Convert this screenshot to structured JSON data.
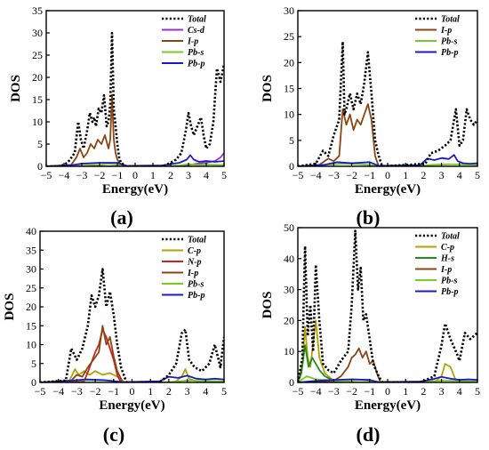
{
  "chart_data": [
    {
      "type": "line",
      "panel_label": "(a)",
      "xlabel": "Energy(eV)",
      "ylabel": "DOS",
      "xlim": [
        -5,
        5
      ],
      "ylim": [
        0,
        35
      ],
      "xticks": [
        -5,
        -4,
        -3,
        -2,
        -1,
        0,
        1,
        2,
        3,
        4,
        5
      ],
      "yticks": [
        0,
        5,
        10,
        15,
        20,
        25,
        30,
        35
      ],
      "xtick_labels": [
        "−5",
        "−4",
        "−3",
        "−2",
        "−1",
        "0",
        "1",
        "2",
        "3",
        "4",
        "5"
      ],
      "ytick_labels": [
        "0",
        "5",
        "10",
        "15",
        "20",
        "25",
        "30",
        "35"
      ],
      "legend": "top-right",
      "series": [
        {
          "name": "Total",
          "color": "#000000",
          "style": "dotted",
          "x": [
            -5,
            -4.2,
            -3.8,
            -3.4,
            -3.2,
            -3.05,
            -2.9,
            -2.7,
            -2.55,
            -2.4,
            -2.3,
            -2.2,
            -2.05,
            -1.9,
            -1.75,
            -1.6,
            -1.5,
            -1.4,
            -1.3,
            -1.2,
            -1.1,
            -1.0,
            -0.9,
            -0.8,
            -0.5,
            1.6,
            2.3,
            2.6,
            2.85,
            3.0,
            3.15,
            3.3,
            3.5,
            3.7,
            3.85,
            4.0,
            4.2,
            4.4,
            4.6,
            4.8,
            5.0
          ],
          "y": [
            0,
            0,
            0.8,
            3,
            10,
            6,
            4,
            8,
            12,
            10,
            11,
            9,
            13,
            12,
            16,
            9,
            10,
            14,
            30,
            13,
            9,
            5,
            2,
            0.8,
            0,
            0,
            1.5,
            3,
            8,
            12,
            9,
            7,
            9,
            11,
            7,
            4,
            5,
            10,
            22,
            19,
            23
          ]
        },
        {
          "name": "Cs-d",
          "color": "#9933cc",
          "style": "solid",
          "x": [
            -5,
            2.5,
            3.0,
            3.5,
            4.0,
            4.5,
            4.8,
            5.0
          ],
          "y": [
            0,
            0,
            0.3,
            0.6,
            0.8,
            1.2,
            2.0,
            3.0
          ]
        },
        {
          "name": "I-p",
          "color": "#8b4513",
          "style": "solid",
          "x": [
            -5,
            -3.6,
            -3.3,
            -3.1,
            -2.9,
            -2.7,
            -2.5,
            -2.3,
            -2.1,
            -1.9,
            -1.7,
            -1.5,
            -1.4,
            -1.3,
            -1.2,
            -1.1,
            -1.0,
            -0.8,
            -0.5
          ],
          "y": [
            0,
            0.3,
            2,
            4,
            2,
            3,
            5,
            4,
            6,
            5,
            7,
            4,
            6,
            16,
            6,
            3,
            1.5,
            0.3,
            0
          ]
        },
        {
          "name": "Pb-s",
          "color": "#77cc22",
          "style": "solid",
          "x": [
            -5,
            -3.5,
            -3.0,
            -2.0,
            -1.5,
            -0.5,
            0.5,
            1.5,
            2.5,
            3.0,
            3.5,
            4.0,
            5.0
          ],
          "y": [
            0,
            0.2,
            0.5,
            0.3,
            0.6,
            0.1,
            0,
            0,
            0.2,
            0.5,
            0.3,
            0.4,
            0.3
          ]
        },
        {
          "name": "Pb-p",
          "color": "#1a1acc",
          "style": "solid",
          "x": [
            -5,
            -3.5,
            -3.0,
            -2.0,
            -1.0,
            -0.5,
            1.5,
            2.5,
            2.9,
            3.1,
            3.3,
            3.6,
            4.0,
            4.5,
            5.0
          ],
          "y": [
            0,
            0.3,
            0.6,
            0.8,
            0.8,
            0.1,
            0.2,
            0.8,
            1.5,
            2.5,
            1.5,
            1.0,
            1.2,
            1.0,
            1.2
          ]
        }
      ]
    },
    {
      "type": "line",
      "panel_label": "(b)",
      "xlabel": "Energy(eV)",
      "ylabel": "DOS",
      "xlim": [
        -5,
        5
      ],
      "ylim": [
        0,
        30
      ],
      "xticks": [
        -5,
        -4,
        -3,
        -2,
        -1,
        0,
        1,
        2,
        3,
        4,
        5
      ],
      "yticks": [
        0,
        5,
        10,
        15,
        20,
        25,
        30
      ],
      "xtick_labels": [
        "−5",
        "−4",
        "−3",
        "−2",
        "−1",
        "0",
        "1",
        "2",
        "3",
        "4",
        "5"
      ],
      "ytick_labels": [
        "0",
        "5",
        "10",
        "15",
        "20",
        "25",
        "30"
      ],
      "legend": "top-right",
      "series": [
        {
          "name": "Total",
          "color": "#000000",
          "style": "dotted",
          "x": [
            -5,
            -4.0,
            -3.6,
            -3.3,
            -3.0,
            -2.7,
            -2.5,
            -2.4,
            -2.3,
            -2.1,
            -1.9,
            -1.7,
            -1.5,
            -1.3,
            -1.1,
            -0.9,
            -0.7,
            -0.5,
            -0.3,
            2.1,
            2.4,
            2.8,
            3.2,
            3.5,
            3.8,
            4.0,
            4.2,
            4.4,
            4.6,
            4.8,
            5.0
          ],
          "y": [
            0,
            0.5,
            3,
            2,
            6,
            9,
            24,
            10,
            11,
            14,
            11,
            14,
            12,
            16,
            22,
            14,
            5,
            2,
            0,
            0.5,
            2.5,
            3,
            4,
            5,
            11,
            4,
            5,
            11,
            9,
            8,
            9
          ]
        },
        {
          "name": "I-p",
          "color": "#8b4513",
          "style": "solid",
          "x": [
            -5,
            -3.8,
            -3.3,
            -3.0,
            -2.7,
            -2.5,
            -2.3,
            -2.1,
            -1.9,
            -1.7,
            -1.5,
            -1.3,
            -1.1,
            -0.9,
            -0.7,
            -0.5
          ],
          "y": [
            0,
            0.3,
            1.5,
            1,
            2,
            11,
            8,
            10,
            7,
            9,
            8,
            10,
            12,
            9,
            2,
            0
          ]
        },
        {
          "name": "Pb-s",
          "color": "#77cc22",
          "style": "solid",
          "x": [
            -5,
            -3.5,
            -2.5,
            -1.5,
            -0.5,
            1.5,
            2.5,
            3.5,
            5.0
          ],
          "y": [
            0,
            0.3,
            0.5,
            0.4,
            0.1,
            0,
            0.3,
            0.4,
            0.3
          ]
        },
        {
          "name": "Pb-p",
          "color": "#1a1acc",
          "style": "solid",
          "x": [
            -5,
            -3.5,
            -2.8,
            -2.0,
            -1.0,
            -0.5,
            1.8,
            2.2,
            2.6,
            3.0,
            3.4,
            3.7,
            3.9,
            4.2,
            4.6,
            5.0
          ],
          "y": [
            0,
            0.3,
            0.8,
            0.6,
            0.8,
            0.1,
            0.2,
            1.5,
            1.2,
            1.6,
            1.4,
            2.2,
            1.0,
            0.6,
            0.5,
            0.6
          ]
        }
      ]
    },
    {
      "type": "line",
      "panel_label": "(c)",
      "xlabel": "Energy(eV)",
      "ylabel": "DOS",
      "xlim": [
        -5,
        5
      ],
      "ylim": [
        0,
        40
      ],
      "xticks": [
        -5,
        -4,
        -3,
        -2,
        -1,
        0,
        1,
        2,
        3,
        4,
        5
      ],
      "yticks": [
        0,
        5,
        10,
        15,
        20,
        25,
        30,
        35,
        40
      ],
      "xtick_labels": [
        "−5",
        "−4",
        "−3",
        "−2",
        "−1",
        "0",
        "1",
        "2",
        "3",
        "4",
        "5"
      ],
      "ytick_labels": [
        "0",
        "5",
        "10",
        "15",
        "20",
        "25",
        "30",
        "35",
        "40"
      ],
      "legend": "top-right",
      "series": [
        {
          "name": "Total",
          "color": "#000000",
          "style": "dotted",
          "x": [
            -5,
            -3.6,
            -3.3,
            -3.0,
            -2.7,
            -2.4,
            -2.2,
            -2.0,
            -1.8,
            -1.6,
            -1.4,
            -1.2,
            -1.0,
            -0.8,
            -0.6,
            -0.3,
            1.5,
            2.0,
            2.4,
            2.7,
            2.9,
            3.1,
            3.4,
            3.8,
            4.2,
            4.5,
            4.8,
            5.0
          ],
          "y": [
            0,
            0.5,
            9,
            6,
            9,
            15,
            23,
            20,
            23,
            30,
            20,
            24,
            18,
            10,
            4,
            0,
            0,
            2,
            5,
            13,
            14,
            6,
            4,
            3,
            5,
            10,
            4,
            12
          ]
        },
        {
          "name": "C-p",
          "color": "#b8a000",
          "style": "solid",
          "x": [
            -5,
            -3.4,
            -3.1,
            -2.9,
            -2.6,
            -2.3,
            -2.0,
            -1.6,
            -1.2,
            -0.8,
            -0.4,
            2.3,
            2.7,
            2.9,
            3.1,
            3.5,
            5.0
          ],
          "y": [
            0,
            0.5,
            3.5,
            2,
            3,
            2,
            3,
            2,
            2.5,
            1.5,
            0,
            0,
            1.5,
            3.5,
            1.0,
            0.3,
            0
          ]
        },
        {
          "name": "N-p",
          "color": "#cc2222",
          "style": "solid",
          "x": [
            -5,
            -2.6,
            -2.3,
            -2.0,
            -1.8,
            -1.6,
            -1.4,
            -1.2,
            -1.0,
            -0.8,
            -0.6
          ],
          "y": [
            0,
            0.3,
            4,
            8,
            10,
            14,
            12,
            9,
            6,
            2,
            0
          ]
        },
        {
          "name": "I-p",
          "color": "#8b4513",
          "style": "solid",
          "x": [
            -5,
            -3.3,
            -3.0,
            -2.7,
            -2.4,
            -2.1,
            -1.8,
            -1.6,
            -1.4,
            -1.2,
            -1.0,
            -0.8,
            -0.5
          ],
          "y": [
            0,
            0.5,
            2,
            1.5,
            4,
            6,
            8,
            15,
            10,
            12,
            7,
            3,
            0
          ]
        },
        {
          "name": "Pb-s",
          "color": "#77cc22",
          "style": "solid",
          "x": [
            -5,
            -3.5,
            -2.5,
            -1.5,
            -0.5,
            2.0,
            3.0,
            4.0,
            5.0
          ],
          "y": [
            0,
            0.4,
            0.6,
            0.5,
            0.1,
            0.1,
            0.5,
            0.4,
            0.3
          ]
        },
        {
          "name": "Pb-p",
          "color": "#1a1acc",
          "style": "solid",
          "x": [
            -5,
            -3.5,
            -2.5,
            -1.5,
            -0.5,
            1.5,
            2.0,
            2.5,
            3.0,
            3.5,
            4.0,
            4.5,
            5.0
          ],
          "y": [
            0,
            0.4,
            0.8,
            0.6,
            0.1,
            0.3,
            1.5,
            1.2,
            1.8,
            1.0,
            0.8,
            1.0,
            0.8
          ]
        }
      ]
    },
    {
      "type": "line",
      "panel_label": "(d)",
      "xlabel": "Energy(eV)",
      "ylabel": "DOS",
      "xlim": [
        -5,
        5
      ],
      "ylim": [
        0,
        50
      ],
      "xticks": [
        -5,
        -4,
        -3,
        -2,
        -1,
        0,
        1,
        2,
        3,
        4,
        5
      ],
      "yticks": [
        0,
        10,
        20,
        30,
        40,
        50
      ],
      "xtick_labels": [
        "−5",
        "−4",
        "−3",
        "−2",
        "−1",
        "0",
        "1",
        "2",
        "3",
        "4",
        "5"
      ],
      "ytick_labels": [
        "0",
        "10",
        "20",
        "30",
        "40",
        "50"
      ],
      "legend": "top-right",
      "series": [
        {
          "name": "Total",
          "color": "#000000",
          "style": "dotted",
          "x": [
            -5,
            -4.75,
            -4.6,
            -4.45,
            -4.3,
            -4.15,
            -4.0,
            -3.8,
            -3.6,
            -3.3,
            -3.0,
            -2.6,
            -2.2,
            -2.0,
            -1.8,
            -1.65,
            -1.5,
            -1.35,
            -1.2,
            -1.0,
            -0.8,
            -0.5,
            -0.3,
            1.8,
            2.6,
            3.0,
            3.2,
            3.5,
            3.8,
            4.0,
            4.3,
            4.6,
            5.0
          ],
          "y": [
            0,
            8,
            44,
            15,
            25,
            10,
            38,
            20,
            6,
            4,
            3,
            7,
            10,
            25,
            49,
            30,
            37,
            20,
            22,
            14,
            6,
            2,
            0,
            0,
            2,
            12,
            19,
            14,
            10,
            7,
            16,
            14,
            16
          ]
        },
        {
          "name": "C-p",
          "color": "#b8a000",
          "style": "solid",
          "x": [
            -5,
            -4.75,
            -4.6,
            -4.45,
            -4.3,
            -4.0,
            -3.8,
            -3.5,
            -3.0,
            -2.5,
            2.6,
            3.0,
            3.2,
            3.5,
            3.8,
            5.0
          ],
          "y": [
            0,
            6,
            18,
            8,
            5,
            20,
            8,
            3,
            0.5,
            0,
            0,
            2,
            6,
            5,
            0.5,
            0
          ]
        },
        {
          "name": "H-s",
          "color": "#228b22",
          "style": "solid",
          "x": [
            -5,
            -4.8,
            -4.6,
            -4.4,
            -4.2,
            -4.0,
            -3.8,
            -3.5,
            -3.0,
            -2.5
          ],
          "y": [
            0,
            3,
            12,
            5,
            8,
            6,
            4,
            2,
            0.5,
            0
          ]
        },
        {
          "name": "I-p",
          "color": "#8b4513",
          "style": "solid",
          "x": [
            -5,
            -3.0,
            -2.6,
            -2.2,
            -2.0,
            -1.8,
            -1.6,
            -1.4,
            -1.2,
            -1.0,
            -0.8,
            -0.6,
            -0.4
          ],
          "y": [
            0,
            0.5,
            2,
            5,
            8,
            9,
            11,
            8,
            10,
            6,
            7,
            3,
            0
          ]
        },
        {
          "name": "Pb-s",
          "color": "#77cc22",
          "style": "solid",
          "x": [
            -5,
            -4.5,
            -4.0,
            -3.5,
            -2.5,
            -1.5,
            -0.5,
            2.0,
            3.0,
            4.0,
            5.0
          ],
          "y": [
            0,
            2,
            1,
            0.8,
            0.5,
            0.8,
            0.2,
            0.2,
            0.6,
            0.5,
            0.4
          ]
        },
        {
          "name": "Pb-p",
          "color": "#1a1acc",
          "style": "solid",
          "x": [
            -5,
            -4.0,
            -3.0,
            -2.0,
            -1.0,
            -0.5,
            1.8,
            2.5,
            3.0,
            3.5,
            4.0,
            4.5,
            5.0
          ],
          "y": [
            0,
            0.5,
            0.8,
            1.0,
            0.8,
            0.1,
            0.3,
            1.0,
            1.8,
            1.2,
            0.8,
            1.0,
            0.8
          ]
        }
      ]
    }
  ]
}
